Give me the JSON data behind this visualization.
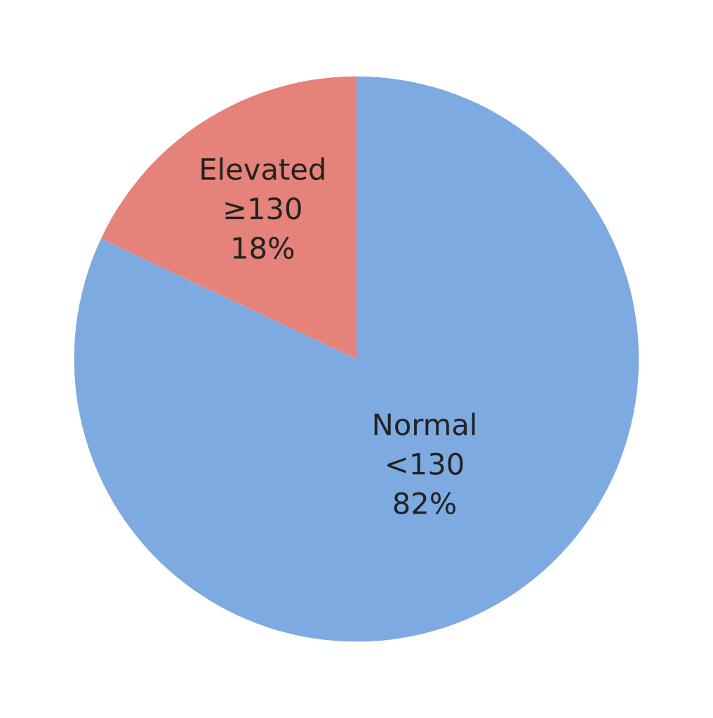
{
  "chart_data": {
    "type": "pie",
    "categories": [
      "Normal\n<130",
      "Elevated\n≥130"
    ],
    "values": [
      82,
      18
    ],
    "value_labels": [
      "82%",
      "18%"
    ],
    "colors": [
      "#7eaae2",
      "#e5827a"
    ],
    "legend": false
  }
}
